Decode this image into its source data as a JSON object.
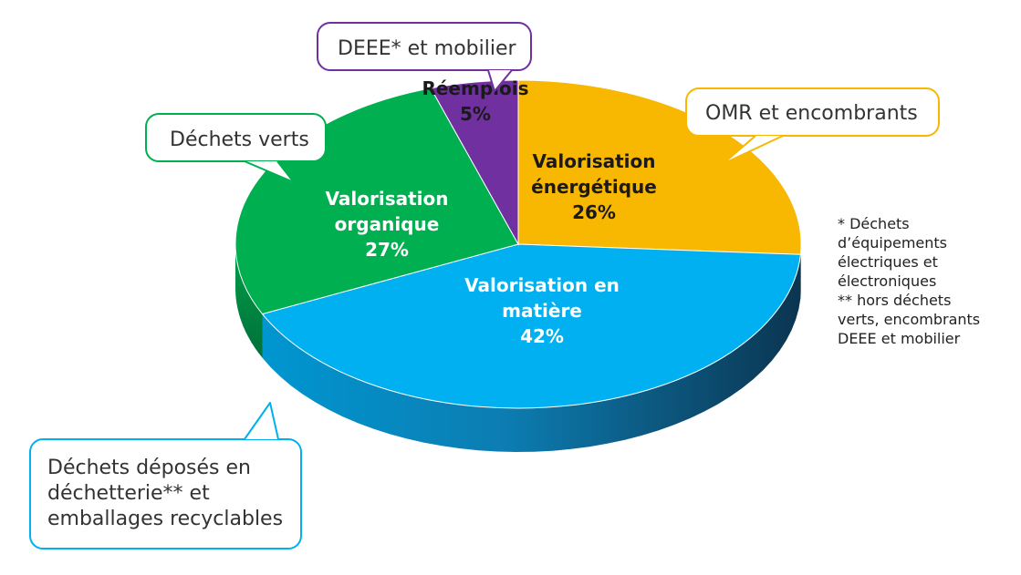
{
  "chart_data": {
    "type": "pie",
    "slices": [
      {
        "label_lines": [
          "Valorisation",
          "énergétique"
        ],
        "value": 26,
        "value_label": "26%",
        "color": "#F8B700",
        "label_color": "#1a1a1a"
      },
      {
        "label_lines": [
          "Valorisation en",
          "matière"
        ],
        "value": 42,
        "value_label": "42%",
        "color": "#00B0F0",
        "label_color": "#ffffff"
      },
      {
        "label_lines": [
          "Valorisation",
          "organique"
        ],
        "value": 27,
        "value_label": "27%",
        "color": "#00B050",
        "label_color": "#ffffff"
      },
      {
        "label_lines": [
          "Réemplois"
        ],
        "value": 5,
        "value_label": "5%",
        "color": "#7030A0",
        "label_color": "#1a1a1a"
      }
    ]
  },
  "callouts": [
    {
      "lines": [
        "DEEE* et mobilier"
      ],
      "color": "#7030A0"
    },
    {
      "lines": [
        "OMR et encombrants"
      ],
      "color": "#F8B700"
    },
    {
      "lines": [
        "Déchets verts"
      ],
      "color": "#00B050"
    },
    {
      "lines": [
        "Déchets déposés en",
        "déchetterie** et",
        "emballages recyclables"
      ],
      "color": "#00B0F0"
    }
  ],
  "footnote": {
    "lines": [
      "* Déchets",
      "d’équipements",
      "électriques et",
      "électroniques",
      "** hors déchets",
      "verts, encombrants",
      "DEEE et mobilier"
    ]
  }
}
